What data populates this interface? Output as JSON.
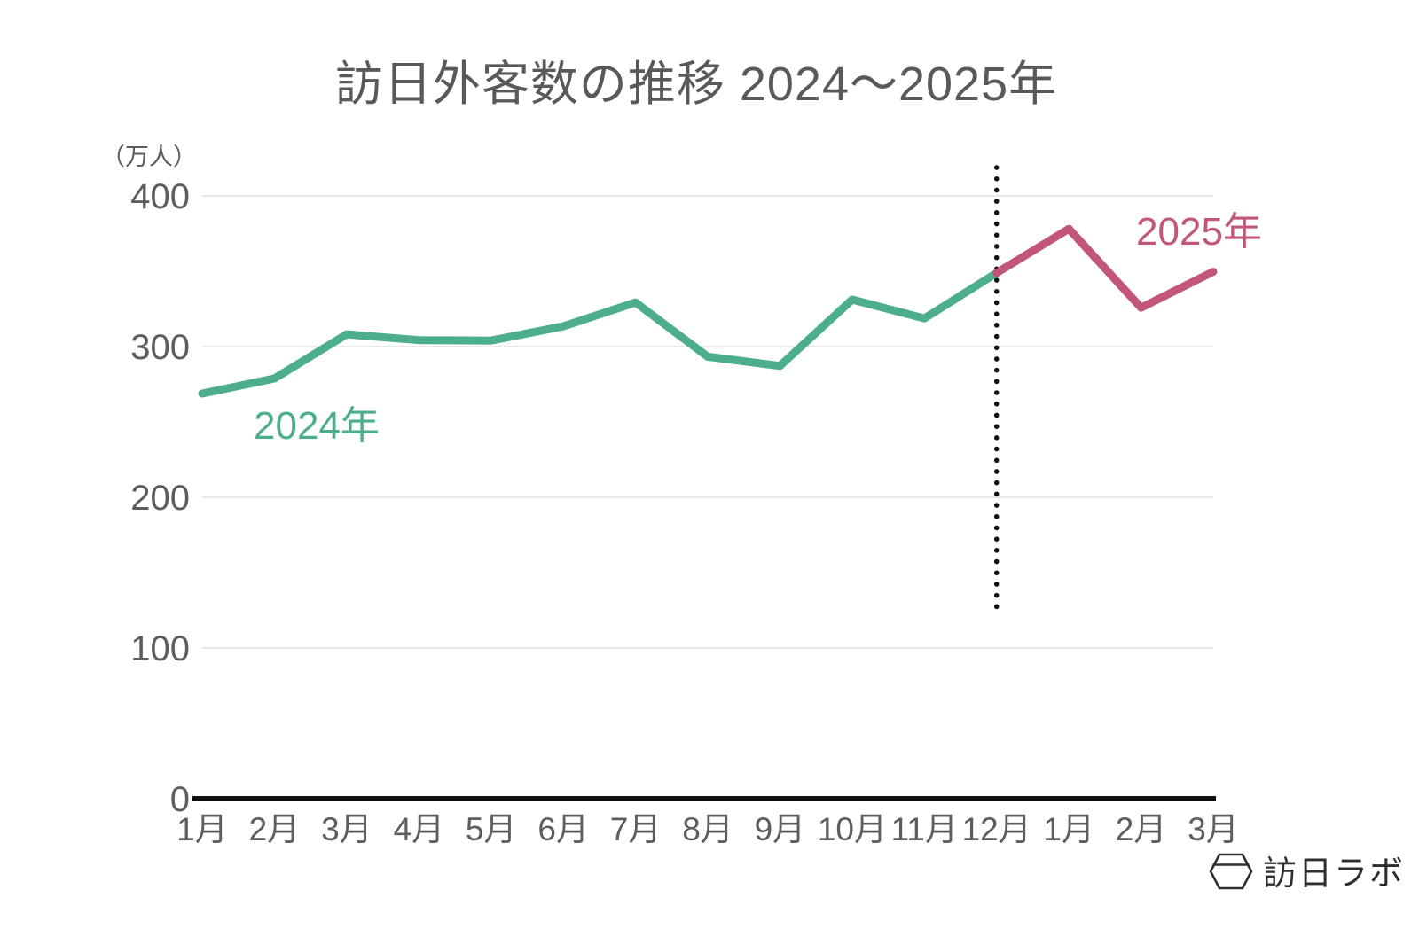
{
  "title": "訪日外客数の推移 2024〜2025年",
  "y_axis": {
    "unit_label": "（万人）",
    "ticks": [
      {
        "label": "400",
        "value": 400
      },
      {
        "label": "300",
        "value": 300
      },
      {
        "label": "200",
        "value": 200
      },
      {
        "label": "100",
        "value": 100
      },
      {
        "label": "0",
        "value": 0
      }
    ]
  },
  "x_axis": {
    "labels": [
      "1月",
      "2月",
      "3月",
      "4月",
      "5月",
      "6月",
      "7月",
      "8月",
      "9月",
      "10月",
      "11月",
      "12月",
      "1月",
      "2月",
      "3月"
    ]
  },
  "series_labels": {
    "s2024": "2024年",
    "s2025": "2025年"
  },
  "logo": {
    "text": "訪日ラボ",
    "icon": "hexagon-lantern-icon"
  },
  "colors": {
    "green_2024": "#4DAE8E",
    "pink_2025": "#C2567A",
    "text_gray": "#5d5d5d",
    "grid_gray": "#e7e7e7",
    "axis_black": "#111111",
    "divider_black": "#111111"
  },
  "chart_data": {
    "type": "line",
    "title": "訪日外客数の推移 2024〜2025年",
    "ylabel": "（万人）",
    "ylim": [
      0,
      400
    ],
    "grid": true,
    "legend": "inline-annotations",
    "categories": [
      "1月",
      "2月",
      "3月",
      "4月",
      "5月",
      "6月",
      "7月",
      "8月",
      "9月",
      "10月",
      "11月",
      "12月",
      "1月",
      "2月",
      "3月"
    ],
    "series": [
      {
        "name": "2024年",
        "color": "#4DAE8E",
        "start_index": 0,
        "values": [
          268.8,
          278.8,
          308.2,
          304.3,
          304.0,
          313.5,
          329.3,
          293.3,
          287.2,
          331.2,
          318.7,
          348.9
        ]
      },
      {
        "name": "2025年",
        "color": "#C2567A",
        "start_index": 11,
        "values": [
          348.9,
          378.1,
          325.8,
          349.7
        ]
      }
    ],
    "divider_at_category_index": 11
  }
}
